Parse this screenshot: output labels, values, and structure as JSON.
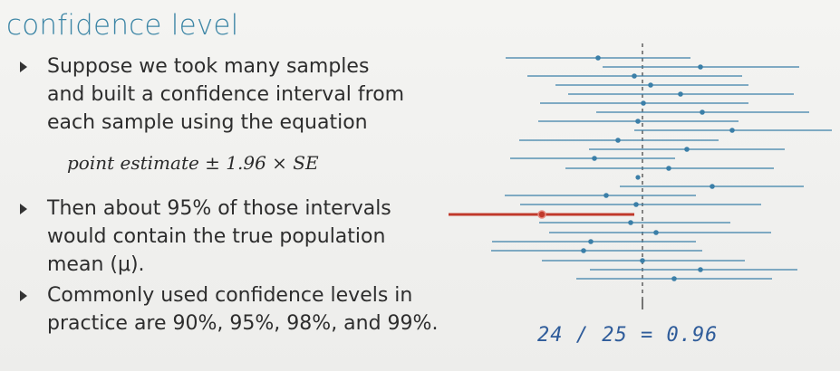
{
  "slide": {
    "title": "confidence level",
    "bullets": [
      {
        "lines": [
          "Suppose we took many samples",
          "and built a confidence interval from",
          "each sample using the equation"
        ]
      },
      {
        "lines": [
          "Then about 95% of those intervals",
          "would contain the true population",
          "mean (μ)."
        ]
      },
      {
        "lines": [
          "Commonly used confidence levels in",
          "practice are 90%, 95%, 98%, and 99%."
        ]
      }
    ],
    "equation": "point estimate ± 1.96 × SE",
    "annotation": "24 / 25 = 0.96"
  },
  "chart_data": {
    "type": "interval-plot",
    "true_mean_line": "dashed vertical",
    "intervals_total": 25,
    "intervals_containing_mean": 24,
    "highlight_color": "#c0392b",
    "interval_color": "#3b7fa8"
  }
}
